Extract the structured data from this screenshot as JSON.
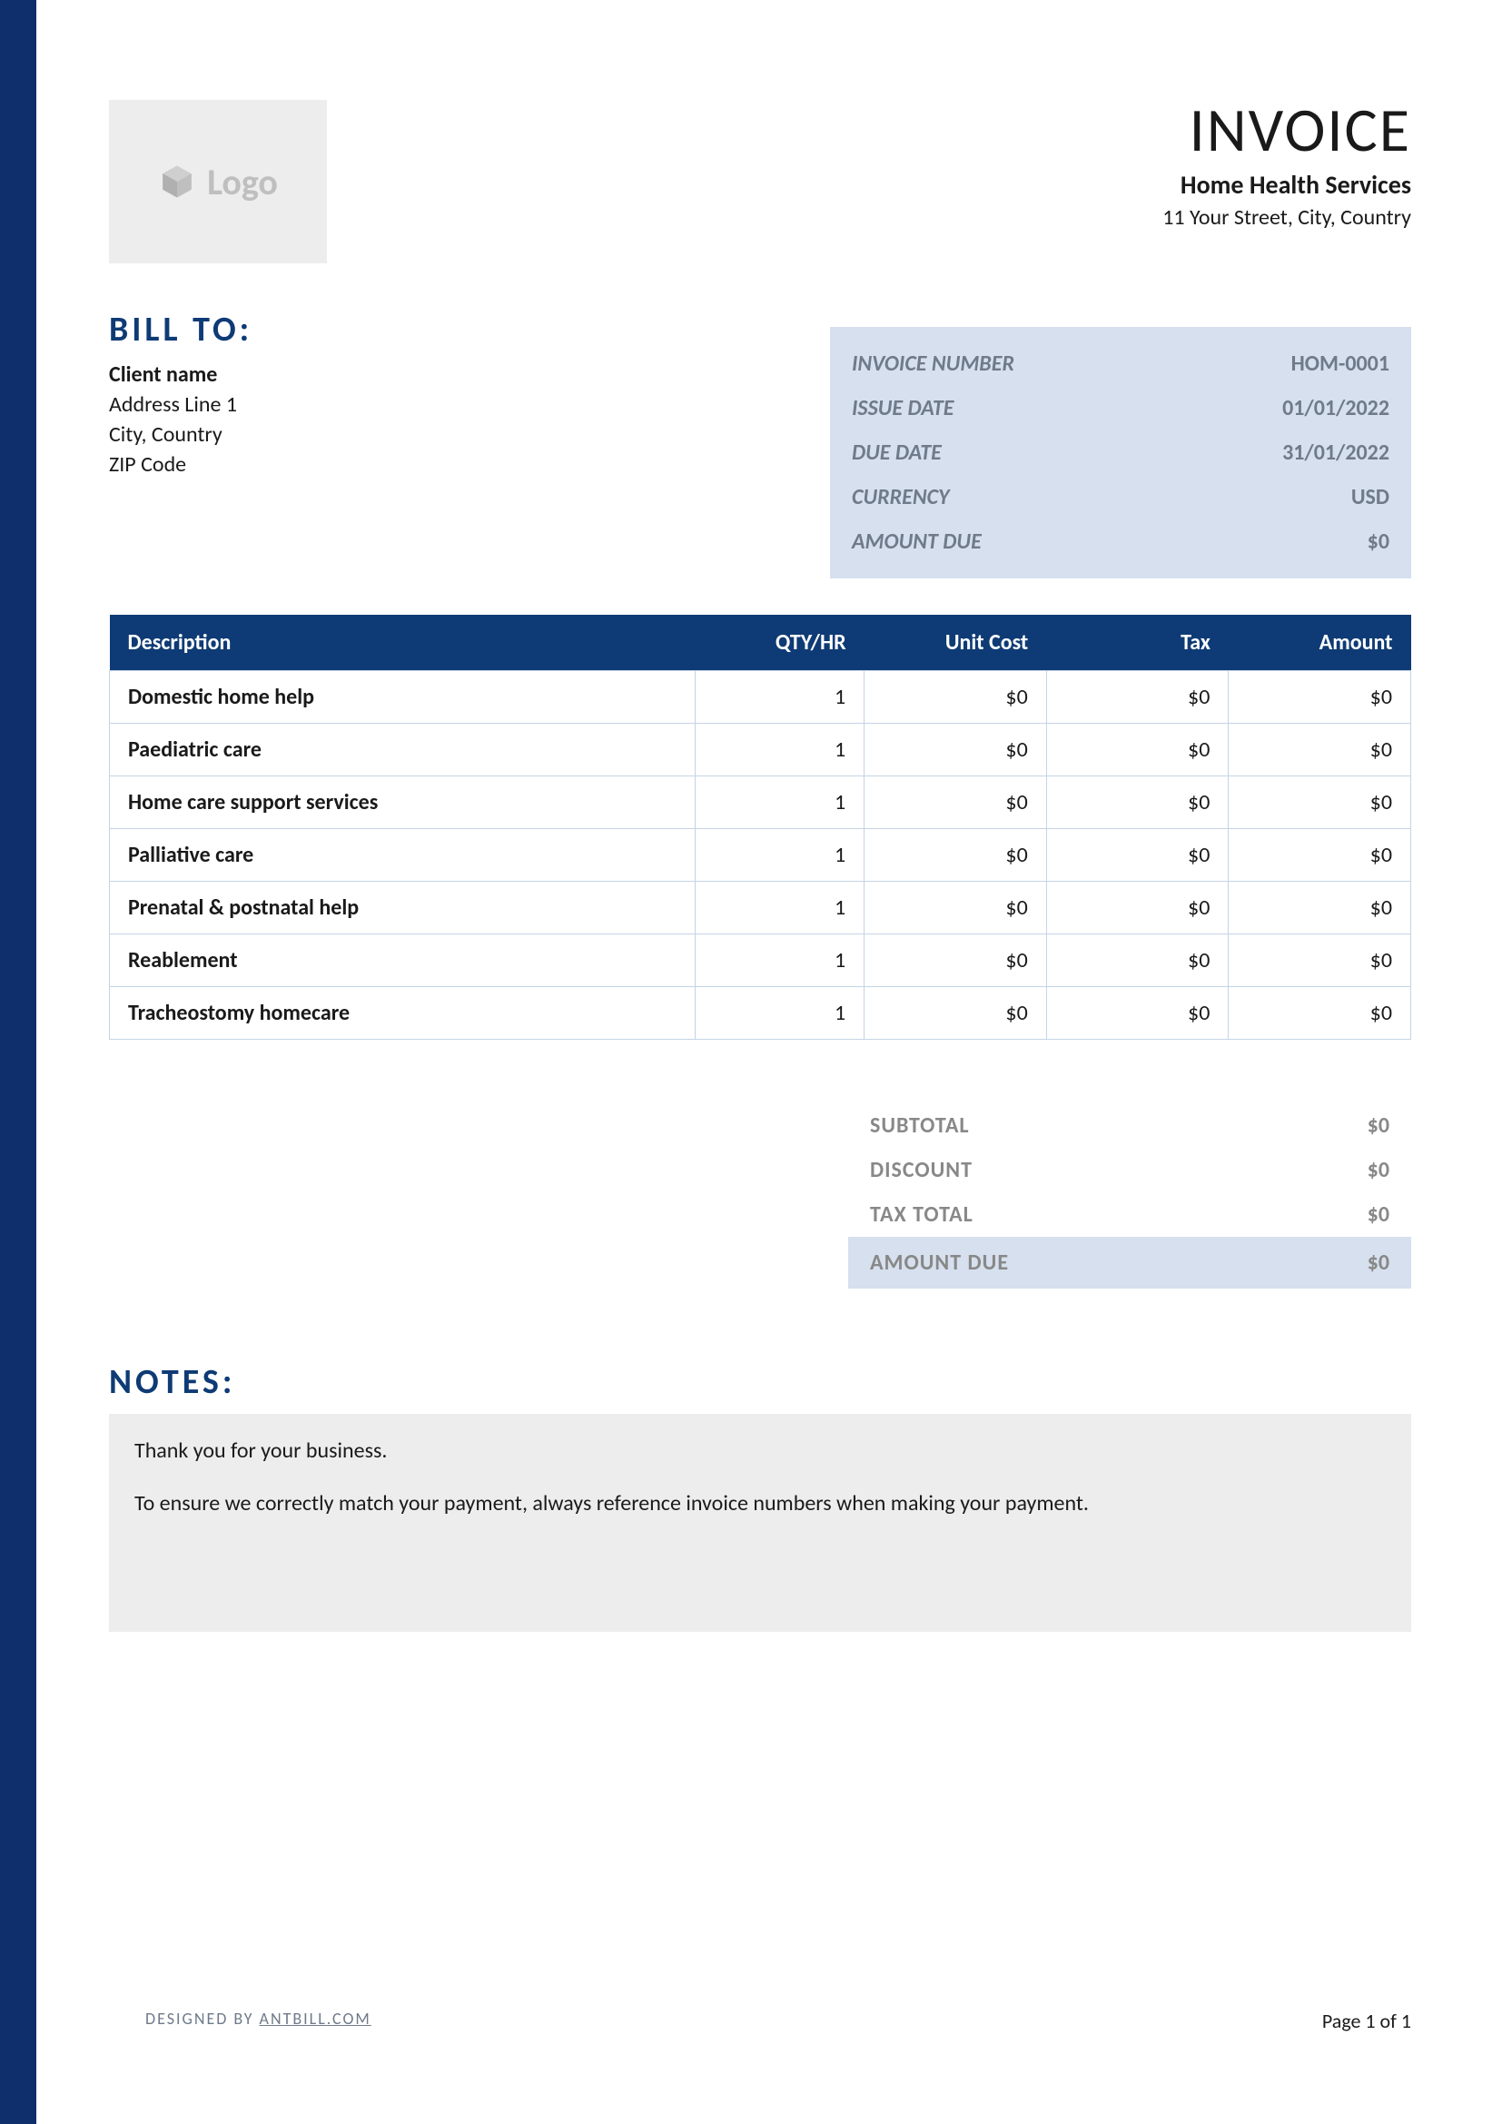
{
  "header": {
    "logo_text": "Logo",
    "invoice_title": "INVOICE",
    "company_name": "Home Health Services",
    "company_address": "11 Your Street, City, Country"
  },
  "bill_to": {
    "title": "BILL TO:",
    "client_name": "Client name",
    "address_line1": "Address Line 1",
    "city_country": "City, Country",
    "zip": "ZIP Code"
  },
  "meta": {
    "rows": [
      {
        "label": "INVOICE NUMBER",
        "value": "HOM-0001"
      },
      {
        "label": "ISSUE DATE",
        "value": "01/01/2022"
      },
      {
        "label": "DUE DATE",
        "value": "31/01/2022"
      },
      {
        "label": "CURRENCY",
        "value": "USD"
      },
      {
        "label": "AMOUNT DUE",
        "value": "$0"
      }
    ]
  },
  "table": {
    "columns": [
      "Description",
      "QTY/HR",
      "Unit Cost",
      "Tax",
      "Amount"
    ],
    "rows": [
      {
        "desc": "Domestic home help",
        "qty": "1",
        "unit": "$0",
        "tax": "$0",
        "amount": "$0"
      },
      {
        "desc": "Paediatric care",
        "qty": "1",
        "unit": "$0",
        "tax": "$0",
        "amount": "$0"
      },
      {
        "desc": "Home care support services",
        "qty": "1",
        "unit": "$0",
        "tax": "$0",
        "amount": "$0"
      },
      {
        "desc": "Palliative care",
        "qty": "1",
        "unit": "$0",
        "tax": "$0",
        "amount": "$0"
      },
      {
        "desc": "Prenatal & postnatal help",
        "qty": "1",
        "unit": "$0",
        "tax": "$0",
        "amount": "$0"
      },
      {
        "desc": "Reablement",
        "qty": "1",
        "unit": "$0",
        "tax": "$0",
        "amount": "$0"
      },
      {
        "desc": "Tracheostomy homecare",
        "qty": "1",
        "unit": "$0",
        "tax": "$0",
        "amount": "$0"
      }
    ]
  },
  "totals": {
    "rows": [
      {
        "label": "SUBTOTAL",
        "value": "$0",
        "highlight": false
      },
      {
        "label": "DISCOUNT",
        "value": "$0",
        "highlight": false
      },
      {
        "label": "TAX TOTAL",
        "value": "$0",
        "highlight": false
      },
      {
        "label": "AMOUNT DUE",
        "value": "$0",
        "highlight": true
      }
    ]
  },
  "notes": {
    "title": "NOTES:",
    "line1": "Thank you for your business.",
    "line2": "To ensure we correctly match your payment, always reference invoice numbers when making your payment."
  },
  "footer": {
    "designed_by_label": "DESIGNED BY ",
    "designed_by_link": "ANTBILL.COM",
    "page": "Page 1 of 1"
  },
  "colors": {
    "accent_bar": "#0e2f6b",
    "table_header": "#0e3b75",
    "meta_bg": "#d6e0ee",
    "notes_bg": "#ededed",
    "muted_text": "#6f7a8a",
    "totals_text": "#888888",
    "logo_gray": "#bfbfbf",
    "border": "#c5d4e6"
  }
}
